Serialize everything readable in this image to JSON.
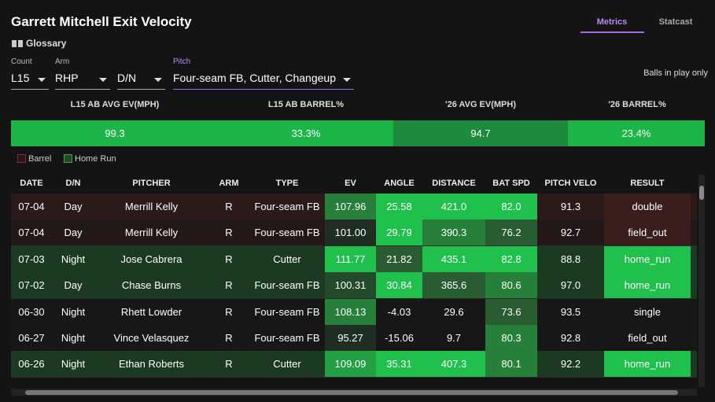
{
  "header": {
    "title": "Garrett Mitchell Exit Velocity",
    "glossary": "Glossary",
    "tabs": [
      "Metrics",
      "Statcast"
    ]
  },
  "filters": [
    {
      "label": "Count",
      "value": "L15"
    },
    {
      "label": "Arm",
      "value": "RHP"
    },
    {
      "value": "D/N"
    },
    {
      "label": "Pitch",
      "value": "Four-seam FB, Cutter, Changeup"
    }
  ],
  "note": "Balls in play only",
  "summary": {
    "headers": [
      "L15 AB AVG EV(MPH)",
      "L15 AB BARREL%",
      "'26 AVG EV(MPH)",
      "'26 BARREL%"
    ],
    "values": [
      "99.3",
      "33.3%",
      "94.7",
      "23.4%"
    ]
  },
  "legend": [
    "Barrel",
    "Home Run"
  ],
  "table": {
    "columns": [
      "DATE",
      "D/N",
      "PITCHER",
      "ARM",
      "TYPE",
      "EV",
      "ANGLE",
      "DISTANCE",
      "BAT SPD",
      "PITCH VELO",
      "RESULT"
    ],
    "rows": [
      [
        "07-04",
        "Day",
        "Merrill Kelly",
        "R",
        "Four-seam FB",
        "107.96",
        "25.58",
        "421.0",
        "82.0",
        "91.3",
        "double"
      ],
      [
        "07-04",
        "Day",
        "Merrill Kelly",
        "R",
        "Four-seam FB",
        "101.00",
        "29.79",
        "390.3",
        "76.2",
        "92.7",
        "field_out"
      ],
      [
        "07-03",
        "Night",
        "Jose Cabrera",
        "R",
        "Cutter",
        "111.77",
        "21.82",
        "435.1",
        "82.8",
        "88.8",
        "home_run"
      ],
      [
        "07-02",
        "Day",
        "Chase Burns",
        "R",
        "Four-seam FB",
        "100.31",
        "30.84",
        "365.6",
        "80.6",
        "97.0",
        "home_run"
      ],
      [
        "06-30",
        "Night",
        "Rhett Lowder",
        "R",
        "Four-seam FB",
        "108.13",
        "-4.03",
        "29.6",
        "73.6",
        "93.5",
        "single"
      ],
      [
        "06-27",
        "Night",
        "Vince Velasquez",
        "R",
        "Four-seam FB",
        "95.27",
        "-15.06",
        "9.7",
        "80.3",
        "92.8",
        "field_out"
      ],
      [
        "06-26",
        "Night",
        "Ethan Roberts",
        "R",
        "Cutter",
        "109.09",
        "35.31",
        "407.3",
        "80.1",
        "92.2",
        "home_run"
      ]
    ]
  }
}
